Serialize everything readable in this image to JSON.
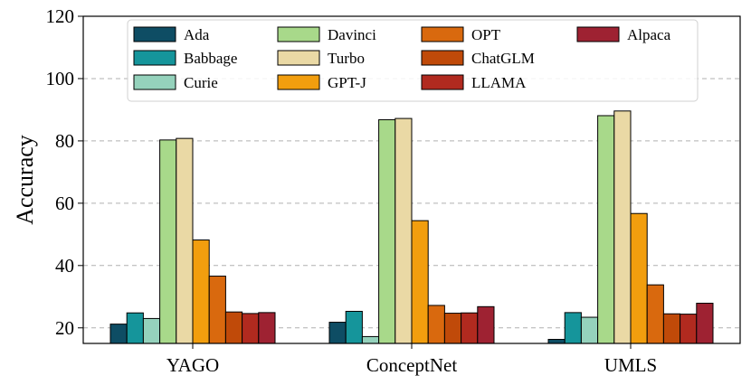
{
  "chart_data": {
    "type": "bar",
    "title": "",
    "xlabel": "",
    "ylabel": "Accuracy",
    "ylim": [
      15,
      120
    ],
    "yticks": [
      20,
      40,
      60,
      80,
      100,
      120
    ],
    "grid": "y-dashed",
    "legend_position": "top-center",
    "categories": [
      "YAGO",
      "ConceptNet",
      "UMLS"
    ],
    "series": [
      {
        "name": "Ada",
        "color": "#0e4d64",
        "values": [
          21.2,
          21.8,
          16.3
        ]
      },
      {
        "name": "Babbage",
        "color": "#15959b",
        "values": [
          24.8,
          25.3,
          24.9
        ]
      },
      {
        "name": "Curie",
        "color": "#95d2bc",
        "values": [
          23.0,
          17.2,
          23.4
        ]
      },
      {
        "name": "Davinci",
        "color": "#a8d98a",
        "values": [
          80.3,
          86.8,
          88.1
        ]
      },
      {
        "name": "Turbo",
        "color": "#ead9a5",
        "values": [
          80.8,
          87.2,
          89.6
        ]
      },
      {
        "name": "GPT-J",
        "color": "#f29e0e",
        "values": [
          48.2,
          54.4,
          56.7
        ]
      },
      {
        "name": "OPT",
        "color": "#d9690e",
        "values": [
          36.6,
          27.2,
          33.8
        ]
      },
      {
        "name": "ChatGLM",
        "color": "#c04a09",
        "values": [
          25.1,
          24.7,
          24.5
        ]
      },
      {
        "name": "LLAMA",
        "color": "#b12a1f",
        "values": [
          24.6,
          24.8,
          24.4
        ]
      },
      {
        "name": "Alpaca",
        "color": "#9e2232",
        "values": [
          24.9,
          26.8,
          27.9
        ]
      }
    ]
  }
}
